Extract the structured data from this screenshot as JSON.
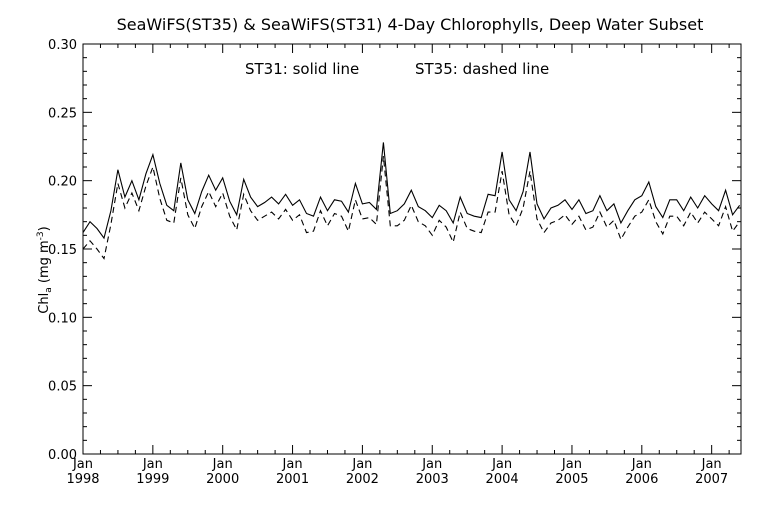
{
  "chart_data": {
    "type": "line",
    "title": "SeaWiFS(ST35) & SeaWiFS(ST31) 4-Day Chlorophylls, Deep Water Subset",
    "annotation_solid": "ST31: solid line",
    "annotation_dashed": "ST35: dashed line",
    "ylabel": {
      "prefix": "Chl",
      "subscript": "a",
      "unit_open": " (mg m",
      "superscript": "-3",
      "unit_close": ")"
    },
    "ylim": [
      0.0,
      0.3
    ],
    "yticks": [
      "0.00",
      "0.05",
      "0.10",
      "0.15",
      "0.20",
      "0.25",
      "0.30"
    ],
    "xlim": [
      1998.0,
      2007.42
    ],
    "xticks": [
      {
        "month": "Jan",
        "year": "1998"
      },
      {
        "month": "Jan",
        "year": "1999"
      },
      {
        "month": "Jan",
        "year": "2000"
      },
      {
        "month": "Jan",
        "year": "2001"
      },
      {
        "month": "Jan",
        "year": "2002"
      },
      {
        "month": "Jan",
        "year": "2003"
      },
      {
        "month": "Jan",
        "year": "2004"
      },
      {
        "month": "Jan",
        "year": "2005"
      },
      {
        "month": "Jan",
        "year": "2006"
      },
      {
        "month": "Jan",
        "year": "2007"
      }
    ],
    "x": [
      1998.0,
      1998.1,
      1998.2,
      1998.3,
      1998.4,
      1998.5,
      1998.6,
      1998.7,
      1998.8,
      1998.9,
      1999.0,
      1999.1,
      1999.2,
      1999.3,
      1999.4,
      1999.5,
      1999.6,
      1999.7,
      1999.8,
      1999.9,
      2000.0,
      2000.1,
      2000.2,
      2000.3,
      2000.4,
      2000.5,
      2000.6,
      2000.7,
      2000.8,
      2000.9,
      2001.0,
      2001.1,
      2001.2,
      2001.3,
      2001.4,
      2001.5,
      2001.6,
      2001.7,
      2001.8,
      2001.9,
      2002.0,
      2002.1,
      2002.2,
      2002.3,
      2002.4,
      2002.5,
      2002.6,
      2002.7,
      2002.8,
      2002.9,
      2003.0,
      2003.1,
      2003.2,
      2003.3,
      2003.4,
      2003.5,
      2003.6,
      2003.7,
      2003.8,
      2003.9,
      2004.0,
      2004.1,
      2004.2,
      2004.3,
      2004.4,
      2004.5,
      2004.6,
      2004.7,
      2004.8,
      2004.9,
      2005.0,
      2005.1,
      2005.2,
      2005.3,
      2005.4,
      2005.5,
      2005.6,
      2005.7,
      2005.8,
      2005.9,
      2006.0,
      2006.1,
      2006.2,
      2006.3,
      2006.4,
      2006.5,
      2006.6,
      2006.7,
      2006.8,
      2006.9,
      2007.0,
      2007.1,
      2007.2,
      2007.3,
      2007.4
    ],
    "series": [
      {
        "name": "ST31",
        "style": "solid",
        "values": [
          0.162,
          0.17,
          0.165,
          0.158,
          0.178,
          0.208,
          0.188,
          0.2,
          0.186,
          0.205,
          0.219,
          0.198,
          0.182,
          0.178,
          0.213,
          0.186,
          0.176,
          0.192,
          0.204,
          0.193,
          0.202,
          0.185,
          0.175,
          0.201,
          0.188,
          0.181,
          0.184,
          0.188,
          0.183,
          0.19,
          0.182,
          0.186,
          0.176,
          0.174,
          0.188,
          0.178,
          0.186,
          0.185,
          0.177,
          0.198,
          0.183,
          0.184,
          0.179,
          0.228,
          0.176,
          0.178,
          0.183,
          0.193,
          0.181,
          0.178,
          0.173,
          0.182,
          0.178,
          0.169,
          0.188,
          0.176,
          0.174,
          0.173,
          0.19,
          0.189,
          0.221,
          0.186,
          0.178,
          0.192,
          0.221,
          0.183,
          0.172,
          0.18,
          0.182,
          0.186,
          0.179,
          0.186,
          0.176,
          0.178,
          0.189,
          0.178,
          0.183,
          0.169,
          0.178,
          0.186,
          0.189,
          0.199,
          0.181,
          0.173,
          0.186,
          0.186,
          0.178,
          0.188,
          0.18,
          0.189,
          0.183,
          0.178,
          0.193,
          0.175,
          0.182
        ]
      },
      {
        "name": "ST35",
        "style": "dashed",
        "values": [
          0.15,
          0.156,
          0.15,
          0.143,
          0.168,
          0.198,
          0.18,
          0.191,
          0.178,
          0.196,
          0.21,
          0.187,
          0.171,
          0.169,
          0.202,
          0.175,
          0.165,
          0.181,
          0.192,
          0.181,
          0.191,
          0.174,
          0.164,
          0.19,
          0.178,
          0.171,
          0.174,
          0.177,
          0.172,
          0.179,
          0.171,
          0.175,
          0.162,
          0.163,
          0.178,
          0.167,
          0.176,
          0.174,
          0.163,
          0.186,
          0.172,
          0.173,
          0.168,
          0.218,
          0.167,
          0.167,
          0.171,
          0.182,
          0.17,
          0.167,
          0.16,
          0.171,
          0.166,
          0.155,
          0.177,
          0.165,
          0.163,
          0.162,
          0.177,
          0.177,
          0.207,
          0.175,
          0.167,
          0.18,
          0.207,
          0.172,
          0.162,
          0.169,
          0.171,
          0.175,
          0.168,
          0.174,
          0.164,
          0.166,
          0.177,
          0.166,
          0.171,
          0.157,
          0.166,
          0.174,
          0.177,
          0.186,
          0.17,
          0.161,
          0.174,
          0.174,
          0.167,
          0.177,
          0.169,
          0.177,
          0.172,
          0.167,
          0.181,
          0.163,
          0.17
        ]
      }
    ]
  }
}
